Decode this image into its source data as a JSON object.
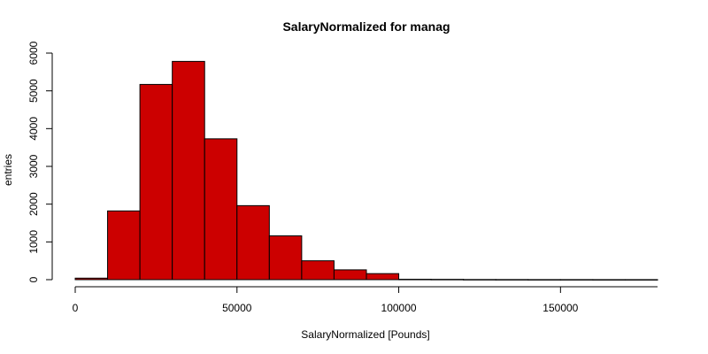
{
  "chart_data": {
    "type": "bar",
    "title": "SalaryNormalized for manag",
    "xlabel": "SalaryNormalized [Pounds]",
    "ylabel": "entries",
    "bin_edges": [
      0,
      10000,
      20000,
      30000,
      40000,
      50000,
      60000,
      70000,
      80000,
      90000,
      100000,
      110000,
      120000,
      130000,
      140000,
      150000,
      160000,
      170000,
      180000
    ],
    "values": [
      40,
      1820,
      5170,
      5780,
      3730,
      1960,
      1160,
      500,
      260,
      160,
      10,
      8,
      4,
      3,
      2,
      2,
      1,
      1
    ],
    "xlim": [
      0,
      180000
    ],
    "ylim": [
      0,
      6000
    ],
    "xticks": [
      0,
      50000,
      100000,
      150000
    ],
    "xtick_labels": [
      "0",
      "50000",
      "100000",
      "150000"
    ],
    "yticks": [
      0,
      1000,
      2000,
      3000,
      4000,
      5000,
      6000
    ],
    "ytick_labels": [
      "0",
      "1000",
      "2000",
      "3000",
      "4000",
      "5000",
      "6000"
    ],
    "bar_color": "#cc0000",
    "grid": false
  }
}
